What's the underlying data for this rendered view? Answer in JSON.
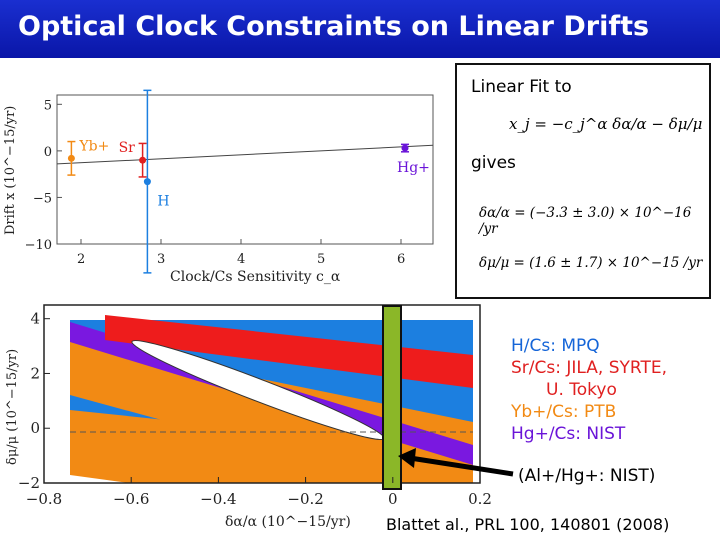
{
  "title": "Optical Clock Constraints on Linear Drifts",
  "fit_box": {
    "line1": "Linear Fit to",
    "equation": "x_j = −c_j^α δα/α − δμ/μ",
    "line2": "gives",
    "result1": "δα/α = (−3.3 ± 3.0) × 10^−16 /yr",
    "result2": "δμ/μ = (1.6 ± 1.7) × 10^−15 /yr"
  },
  "legend_list": [
    {
      "text": "H/Cs: MPQ",
      "color": "#1565d8"
    },
    {
      "text": "Sr/Cs: JILA, SYRTE,",
      "color": "#e02020"
    },
    {
      "text": "U. Tokyo",
      "color": "#e02020"
    },
    {
      "text": "Yb+/Cs: PTB",
      "color": "#f28a14"
    },
    {
      "text": "Hg+/Cs: NIST",
      "color": "#6a14d8"
    }
  ],
  "al_hg_label": "(Al+/Hg+: NIST)",
  "citation": "Blattet al., PRL 100, 140801 (2008)",
  "colors": {
    "yb": "#f28a14",
    "sr": "#e02020",
    "h": "#1c7fe0",
    "hg": "#6a14d8",
    "green": "#8bb728",
    "title_bg": "#0a16a8"
  },
  "chart_data": [
    {
      "type": "scatter",
      "title": "",
      "xlabel": "Clock/Cs Sensitivity c_α",
      "ylabel": "Drift x (10^−15/yr)",
      "xlim": [
        1.7,
        6.4
      ],
      "ylim": [
        -10,
        6
      ],
      "xticks": [
        "2",
        "3",
        "4",
        "5",
        "6"
      ],
      "yticks": [
        "5",
        "0",
        "−5",
        "−10"
      ],
      "series": [
        {
          "name": "Yb+",
          "x": [
            1.88
          ],
          "y": [
            -0.8
          ],
          "err": [
            1.8
          ]
        },
        {
          "name": "Sr",
          "x": [
            2.77
          ],
          "y": [
            -1.0
          ],
          "err": [
            1.8
          ]
        },
        {
          "name": "H",
          "x": [
            2.83
          ],
          "y": [
            -3.3
          ],
          "err": [
            9.8
          ]
        },
        {
          "name": "Hg+",
          "x": [
            6.05
          ],
          "y": [
            0.3
          ],
          "err": [
            0.4
          ]
        }
      ],
      "fit_line": {
        "x": [
          1.7,
          6.4
        ],
        "y": [
          -1.4,
          0.6
        ]
      }
    },
    {
      "type": "area",
      "title": "",
      "xlabel": "δα/α (10^−15/yr)",
      "ylabel": "δμ/μ (10^−15/yr)",
      "xlim": [
        -0.8,
        0.2
      ],
      "ylim": [
        -2,
        4.5
      ],
      "xticks": [
        "−0.8",
        "−0.6",
        "−0.4",
        "−0.2",
        "0",
        "0.2"
      ],
      "yticks": [
        "4",
        "2",
        "0",
        "−2"
      ],
      "regions": [
        "H/Cs",
        "Sr/Cs",
        "Yb+/Cs",
        "Hg+/Cs",
        "Al+/Hg+"
      ]
    }
  ]
}
